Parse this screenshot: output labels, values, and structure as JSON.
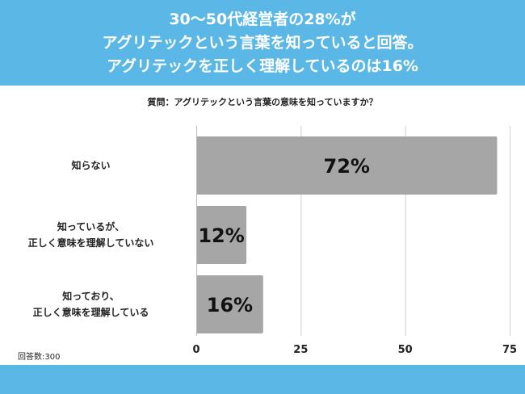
{
  "header": {
    "line1": "30〜50代経営者の28%が",
    "line2": "アグリテックという言葉を知っていると回答。",
    "line3": "アグリテックを正しく理解しているのは16%"
  },
  "question": "質問：アグリテックという言葉の意味を知っていますか？",
  "note": "回答数:300",
  "colors": {
    "band": "#5bb8e6",
    "bar": "#a6a6a6"
  },
  "chart_data": {
    "type": "bar",
    "orientation": "horizontal",
    "categories": [
      [
        "知らない"
      ],
      [
        "知っているが、",
        "正しく意味を理解していない"
      ],
      [
        "知っており、",
        "正しく意味を理解している"
      ]
    ],
    "values": [
      72,
      12,
      16
    ],
    "value_labels": [
      "72%",
      "12%",
      "16%"
    ],
    "xlim": [
      0,
      75
    ],
    "xticks": [
      0,
      25,
      50,
      75
    ],
    "grid": true
  }
}
